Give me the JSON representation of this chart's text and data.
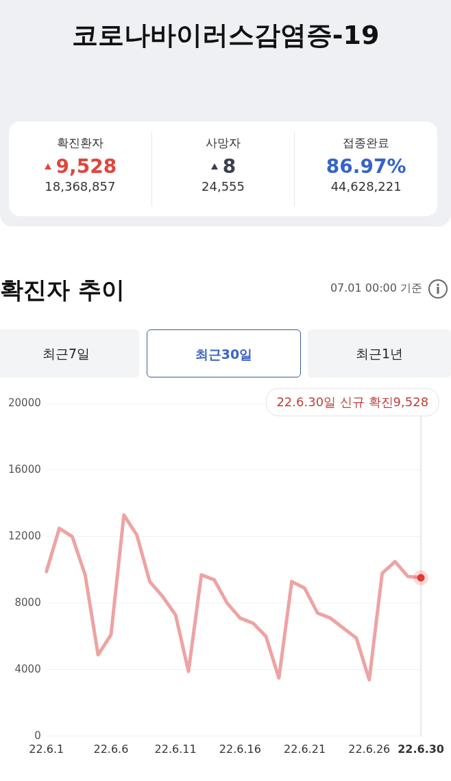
{
  "chart_data": [
    {
      "type": "other",
      "title": "코로나바이러스감염증-19",
      "annotations": [
        "확진환자",
        "9,528",
        "18,368,857",
        "사망자",
        "8",
        "24,555",
        "접종완료",
        "86.97%",
        "44,628,221"
      ]
    },
    {
      "type": "line",
      "title": "확진자 추이",
      "categories": [
        "22.6.1",
        null,
        null,
        null,
        null,
        "22.6.6",
        null,
        null,
        null,
        null,
        "22.6.11",
        null,
        null,
        null,
        null,
        "22.6.16",
        null,
        null,
        null,
        null,
        "22.6.21",
        null,
        null,
        null,
        null,
        "22.6.26",
        null,
        null,
        null,
        "22.6.30"
      ],
      "series": [
        {
          "color": "#eea3a3",
          "values": [
            9900,
            12500,
            12000,
            9700,
            4900,
            6100,
            13300,
            12100,
            9300,
            8400,
            7300,
            3900,
            9700,
            9400,
            8000,
            7100,
            6800,
            6000,
            3500,
            9300,
            8900,
            7400,
            7100,
            6500,
            5900,
            3400,
            9800,
            10500,
            9600,
            9528
          ]
        }
      ],
      "ylim": [
        0,
        20000
      ],
      "yticks": [
        0,
        4000,
        8000,
        12000,
        16000,
        20000
      ],
      "grid": "y",
      "marker": "none",
      "line_style": "solid",
      "annotations": [
        "07.01 00:00 기준",
        "최근7일",
        "최근30일",
        "최근1년",
        "22.6.30일 신규 확진9,528"
      ]
    }
  ]
}
